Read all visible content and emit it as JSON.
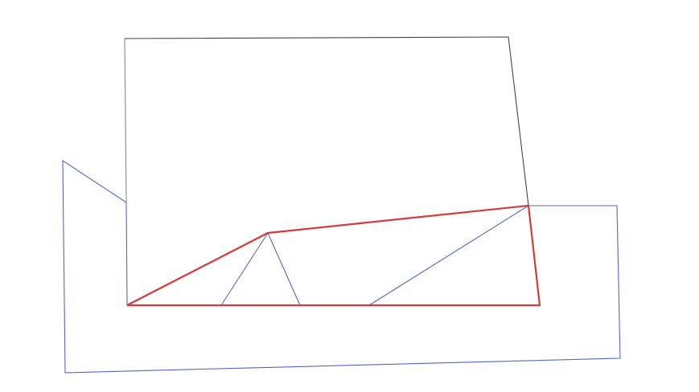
{
  "diagram": {
    "colors": {
      "outer_polygon": "#5566cc",
      "rectangle": "#444444",
      "rectangle_left_edge": "#8a8a8a",
      "highlight_polygon": "#d63a3a",
      "triangulation_lines": "#5566cc",
      "background": "#ffffff"
    },
    "shapes": [
      "outer-blue-polygon",
      "gray-quadrilateral",
      "red-polygon",
      "triangulation-lines"
    ]
  }
}
